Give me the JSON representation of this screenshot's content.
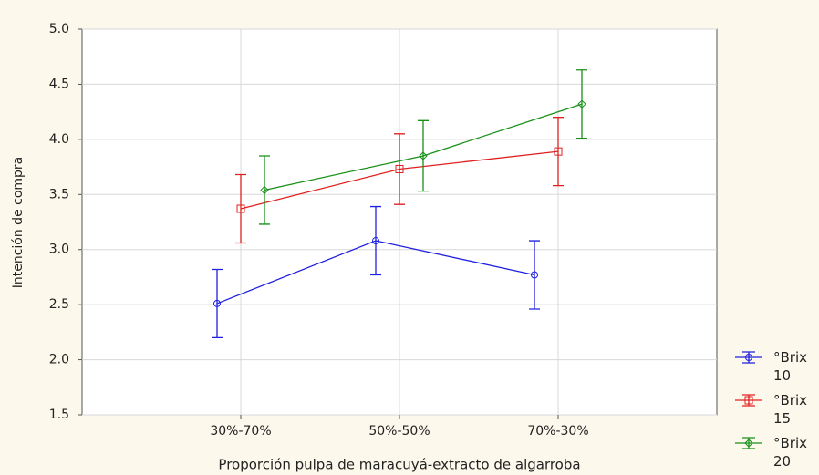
{
  "chart_data": {
    "type": "line",
    "x_label": "Proporción pulpa de maracuyá-extracto de algarroba",
    "y_label": "Intención de compra",
    "categories": [
      "30%-70%",
      "50%-50%",
      "70%-30%"
    ],
    "series": [
      {
        "name": "°Brix 10",
        "color": "#2020e0",
        "marker": "circle",
        "values": [
          2.51,
          3.08,
          2.77
        ],
        "errors": [
          0.31,
          0.31,
          0.31
        ]
      },
      {
        "name": "°Brix 15",
        "color": "#e02020",
        "marker": "square",
        "values": [
          3.37,
          3.73,
          3.89
        ],
        "errors": [
          0.31,
          0.32,
          0.31
        ]
      },
      {
        "name": "°Brix 20",
        "color": "#189018",
        "marker": "diamond",
        "values": [
          3.54,
          3.85,
          4.32
        ],
        "errors": [
          0.31,
          0.32,
          0.31
        ]
      }
    ],
    "ylim": [
      1.5,
      5.0
    ],
    "yticks": [
      {
        "value": 1.5,
        "label": "1.5"
      },
      {
        "value": 2.0,
        "label": "2.0"
      },
      {
        "value": 2.5,
        "label": "2.5"
      },
      {
        "value": 3.0,
        "label": "3.0"
      },
      {
        "value": 3.5,
        "label": "3.5"
      },
      {
        "value": 4.0,
        "label": "4.0"
      },
      {
        "value": 4.5,
        "label": "4.5"
      },
      {
        "value": 5.0,
        "label": "5.0"
      }
    ],
    "grid": true
  }
}
